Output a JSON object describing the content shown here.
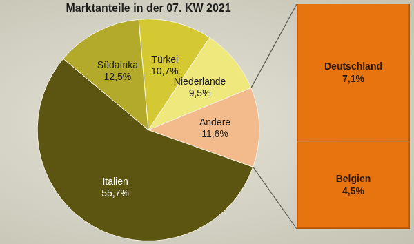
{
  "chart_data": [
    {
      "type": "pie",
      "title": "Marktanteile in der 07. KW 2021",
      "categories": [
        "Türkei",
        "Niederlande",
        "Andere",
        "Italien",
        "Südafrika"
      ],
      "values": [
        10.7,
        9.5,
        11.6,
        55.7,
        12.5
      ],
      "value_labels": [
        "10,7%",
        "9,5%",
        "11,6%",
        "55,7%",
        "12,5%"
      ],
      "colors": [
        "#d4c932",
        "#efe87c",
        "#f3bb8c",
        "#5c5511",
        "#b3aa2b"
      ],
      "data_labels": true
    },
    {
      "type": "bar",
      "stacked": true,
      "categories": [
        null
      ],
      "series": [
        {
          "name": "Deutschland",
          "color": "#e8740f",
          "values": [
            7.1
          ],
          "value_labels": [
            "7,1%"
          ]
        },
        {
          "name": "Belgien",
          "color": "#e8740f",
          "values": [
            4.5
          ],
          "value_labels": [
            "4,5%"
          ]
        }
      ],
      "ylim": [
        0,
        11.6
      ],
      "tick_labels": false,
      "data_labels": true
    }
  ]
}
